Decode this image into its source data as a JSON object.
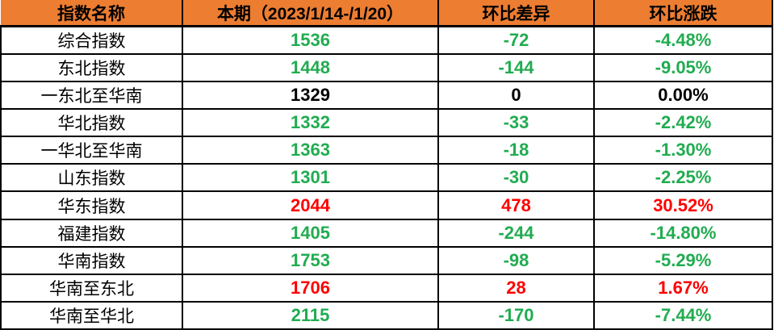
{
  "table": {
    "columns": [
      {
        "label": "指数名称"
      },
      {
        "label": "本期（2023/1/14-/1/20）"
      },
      {
        "label": "环比差异"
      },
      {
        "label": "环比涨跌"
      }
    ],
    "rows": [
      {
        "name": "综合指数",
        "current": "1536",
        "diff": "-72",
        "pct": "-4.48%",
        "trend": "down"
      },
      {
        "name": "东北指数",
        "current": "1448",
        "diff": "-144",
        "pct": "-9.05%",
        "trend": "down"
      },
      {
        "name": "一东北至华南",
        "current": "1329",
        "diff": "0",
        "pct": "0.00%",
        "trend": "flat"
      },
      {
        "name": "华北指数",
        "current": "1332",
        "diff": "-33",
        "pct": "-2.42%",
        "trend": "down"
      },
      {
        "name": "一华北至华南",
        "current": "1363",
        "diff": "-18",
        "pct": "-1.30%",
        "trend": "down"
      },
      {
        "name": "山东指数",
        "current": "1301",
        "diff": "-30",
        "pct": "-2.25%",
        "trend": "down"
      },
      {
        "name": "华东指数",
        "current": "2044",
        "diff": "478",
        "pct": "30.52%",
        "trend": "up"
      },
      {
        "name": "福建指数",
        "current": "1405",
        "diff": "-244",
        "pct": "-14.80%",
        "trend": "down"
      },
      {
        "name": "华南指数",
        "current": "1753",
        "diff": "-98",
        "pct": "-5.29%",
        "trend": "down"
      },
      {
        "name": "华南至东北",
        "current": "1706",
        "diff": "28",
        "pct": "1.67%",
        "trend": "up"
      },
      {
        "name": "华南至华北",
        "current": "2115",
        "diff": "-170",
        "pct": "-7.44%",
        "trend": "down"
      }
    ]
  },
  "colors": {
    "header_bg": "#ED7D31",
    "up": "#FF0000",
    "down": "#21AC50",
    "flat": "#000000",
    "border": "#000000"
  }
}
